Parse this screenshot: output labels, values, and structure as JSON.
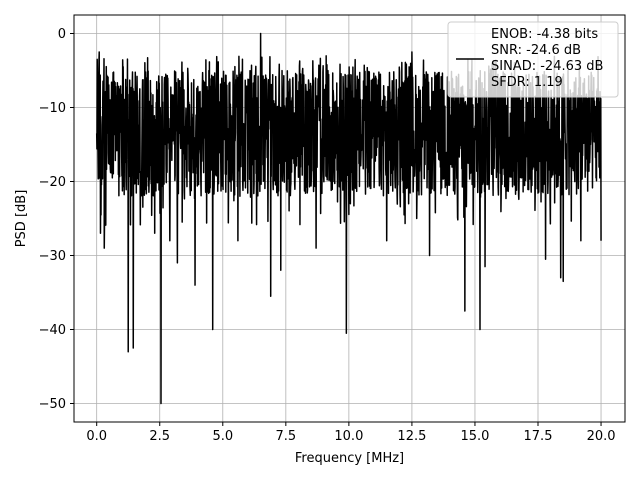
{
  "chart_data": {
    "type": "line",
    "title": "",
    "xlabel": "Frequency [MHz]",
    "ylabel": "PSD [dB]",
    "xlim": [
      -0.9,
      20.95
    ],
    "ylim": [
      -52.5,
      2.5
    ],
    "x_ticks": [
      0.0,
      2.5,
      5.0,
      7.5,
      10.0,
      12.5,
      15.0,
      17.5,
      20.0
    ],
    "x_tick_labels": [
      "0.0",
      "2.5",
      "5.0",
      "7.5",
      "10.0",
      "12.5",
      "15.0",
      "17.5",
      "20.0"
    ],
    "y_ticks": [
      0,
      -10,
      -20,
      -30,
      -40,
      -50
    ],
    "y_tick_labels": [
      "0",
      "−10",
      "−20",
      "−30",
      "−40",
      "−50"
    ],
    "grid": true,
    "legend_position": "top-right",
    "legend_lines": [
      "ENOB: -4.38 bits",
      "SNR: -24.6 dB",
      "SINAD: -24.63 dB",
      "SFDR: 1.19"
    ],
    "series": [
      {
        "color": "#000000",
        "x_start": 0.0,
        "x_end": 20.0,
        "typical_range": [
          -22,
          -5
        ],
        "notable_points": [
          {
            "x": 0.02,
            "y": -3.5
          },
          {
            "x": 0.05,
            "y": -16
          },
          {
            "x": 0.1,
            "y": -2.5
          },
          {
            "x": 0.15,
            "y": -27
          },
          {
            "x": 0.3,
            "y": -29
          },
          {
            "x": 1.05,
            "y": -26
          },
          {
            "x": 1.25,
            "y": -43
          },
          {
            "x": 1.45,
            "y": -42.5
          },
          {
            "x": 1.05,
            "y": -4.5
          },
          {
            "x": 2.3,
            "y": -27
          },
          {
            "x": 2.55,
            "y": -50
          },
          {
            "x": 2.9,
            "y": -28
          },
          {
            "x": 3.2,
            "y": -31
          },
          {
            "x": 3.9,
            "y": -34
          },
          {
            "x": 4.6,
            "y": -40
          },
          {
            "x": 5.6,
            "y": -28
          },
          {
            "x": 6.5,
            "y": 0
          },
          {
            "x": 6.9,
            "y": -35.5
          },
          {
            "x": 7.3,
            "y": -32
          },
          {
            "x": 8.7,
            "y": -29
          },
          {
            "x": 9.9,
            "y": -40.5
          },
          {
            "x": 11.5,
            "y": -28
          },
          {
            "x": 12.5,
            "y": -2.5
          },
          {
            "x": 13.2,
            "y": -30
          },
          {
            "x": 14.6,
            "y": -37.5
          },
          {
            "x": 15.2,
            "y": -40
          },
          {
            "x": 15.4,
            "y": -31.5
          },
          {
            "x": 17.8,
            "y": -30.5
          },
          {
            "x": 18.4,
            "y": -33
          },
          {
            "x": 18.5,
            "y": -33.5
          },
          {
            "x": 19.2,
            "y": -28
          },
          {
            "x": 20.0,
            "y": -28
          }
        ]
      }
    ]
  }
}
